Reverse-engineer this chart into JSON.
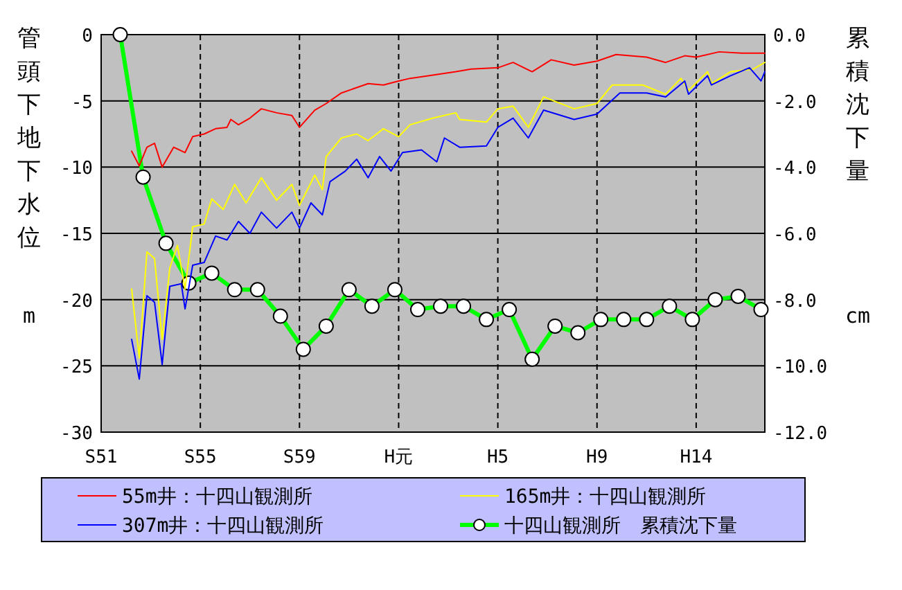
{
  "chart_data": {
    "type": "line",
    "ylabel": "管頭下地下水位",
    "y2label": "累積沈下量",
    "annotations": [
      "m",
      "cm"
    ],
    "categories": [
      "S51",
      null,
      null,
      null,
      null,
      null,
      null,
      null,
      null,
      null,
      null,
      null,
      null,
      null,
      null,
      null,
      null,
      null,
      null,
      null,
      null,
      null,
      null,
      null,
      null,
      null,
      "S55",
      null,
      null,
      null,
      null,
      null,
      null,
      null,
      null,
      null,
      null,
      null,
      null,
      null,
      null,
      null,
      null,
      null,
      null,
      null,
      null,
      null,
      null,
      null,
      null,
      null,
      "S59",
      null,
      null,
      null,
      null,
      null,
      null,
      null,
      null,
      null,
      null,
      null,
      null,
      null,
      null,
      null,
      null,
      null,
      null,
      null,
      null,
      null,
      null,
      null,
      null,
      null,
      "H元",
      null,
      null,
      null,
      null,
      null,
      null,
      null,
      null,
      null,
      null,
      null,
      null,
      null,
      null,
      null,
      null,
      null,
      null,
      null,
      null,
      null,
      null,
      null,
      null,
      null,
      "H5",
      null,
      null,
      null,
      null,
      null,
      null,
      null,
      null,
      null,
      null,
      null,
      null,
      null,
      null,
      null,
      null,
      null,
      null,
      null,
      null,
      null,
      null,
      null,
      null,
      null,
      "H9",
      null,
      null,
      null,
      null,
      null,
      null,
      null,
      null,
      null,
      null,
      null,
      null,
      null,
      null,
      null,
      null,
      null,
      null,
      null,
      null,
      null,
      null,
      null,
      null,
      null,
      "H14",
      null,
      null,
      null,
      null,
      null,
      null,
      null,
      null,
      null,
      null,
      null,
      null,
      null,
      null,
      null,
      null,
      null,
      null
    ],
    "ylim": [
      -30,
      0
    ],
    "yticks": [
      -30,
      -25,
      -20,
      -15,
      -10,
      -5,
      0
    ],
    "y2lim": [
      -12,
      0
    ],
    "y2ticks": [
      {
        "value": -12,
        "label": "-12.0"
      },
      {
        "value": -10,
        "label": "-10.0"
      },
      {
        "value": -8,
        "label": "-8.0"
      },
      {
        "value": -6,
        "label": "-6.0"
      },
      {
        "value": -4,
        "label": "-4.0"
      },
      {
        "value": -2,
        "label": "-2.0"
      },
      {
        "value": 0,
        "label": "0.0"
      }
    ],
    "grid": true,
    "legend": "bottom",
    "series": [
      {
        "name": "55m井：十四山観測所",
        "color": "#ff0000",
        "marker": "none",
        "values": [
          null,
          null,
          null,
          null,
          null,
          null,
          null,
          null,
          -8.8,
          null,
          -9.9,
          null,
          -8.5,
          null,
          -8.2,
          null,
          -10.0,
          null,
          null,
          -8.5,
          null,
          null,
          -8.9,
          null,
          -7.7,
          null,
          null,
          -7.5,
          null,
          null,
          -7.1,
          null,
          null,
          -7.0,
          -6.4,
          null,
          -6.8,
          null,
          null,
          -6.3,
          null,
          null,
          -5.6,
          null,
          null,
          null,
          -5.9,
          null,
          null,
          null,
          -6.1,
          null,
          -7.0,
          null,
          null,
          null,
          -5.7,
          null,
          null,
          -5.2,
          null,
          null,
          null,
          -4.4,
          null,
          null,
          null,
          -4.0,
          null,
          null,
          -3.7,
          null,
          null,
          null,
          -3.8,
          null,
          null,
          null,
          -3.5,
          null,
          null,
          -3.3,
          null,
          null,
          null,
          null,
          -3.1,
          null,
          null,
          null,
          null,
          null,
          null,
          -2.8,
          null,
          null,
          null,
          -2.6,
          null,
          null,
          null,
          null,
          null,
          null,
          -2.5,
          null,
          null,
          null,
          -2.1,
          null,
          null,
          null,
          null,
          -2.8,
          null,
          null,
          null,
          null,
          -1.9,
          null,
          null,
          null,
          null,
          null,
          -2.3,
          null,
          null,
          null,
          null,
          null,
          -2.0,
          null,
          null,
          null,
          null,
          -1.5,
          null,
          null,
          null,
          null,
          null,
          null,
          null,
          -1.7,
          null,
          null,
          null,
          null,
          -2.1,
          null,
          null,
          null,
          null,
          -1.6,
          null,
          null,
          -1.7,
          null,
          null,
          null,
          null,
          null,
          -1.3,
          null,
          null,
          null,
          null,
          null,
          -1.4,
          null,
          null,
          null,
          null,
          null,
          -1.4
        ]
      },
      {
        "name": "165m井：十四山観測所",
        "color": "#ffff00",
        "marker": "none",
        "values": [
          null,
          null,
          null,
          null,
          null,
          null,
          null,
          null,
          -19.2,
          null,
          -24.4,
          null,
          -16.4,
          null,
          -16.9,
          null,
          -23.0,
          null,
          -17.6,
          null,
          -15.9,
          null,
          -19.2,
          null,
          -14.5,
          null,
          null,
          -14.3,
          null,
          -12.4,
          null,
          null,
          -13.2,
          null,
          null,
          -11.3,
          null,
          null,
          -12.7,
          null,
          null,
          null,
          -10.8,
          null,
          null,
          null,
          -12.5,
          null,
          null,
          null,
          -11.3,
          null,
          -12.9,
          null,
          null,
          null,
          -10.6,
          null,
          -11.7,
          -9.2,
          null,
          null,
          null,
          -7.8,
          null,
          null,
          null,
          -7.5,
          null,
          null,
          -8.0,
          null,
          null,
          null,
          -7.1,
          null,
          null,
          null,
          -7.7,
          null,
          null,
          -6.8,
          null,
          null,
          null,
          null,
          null,
          -6.3,
          null,
          null,
          null,
          null,
          null,
          -5.9,
          -6.4,
          null,
          null,
          null,
          null,
          null,
          null,
          -6.6,
          null,
          null,
          -5.6,
          null,
          null,
          null,
          -5.4,
          null,
          null,
          null,
          -7.0,
          null,
          null,
          null,
          -4.7,
          null,
          null,
          null,
          null,
          null,
          null,
          null,
          -5.6,
          null,
          null,
          null,
          null,
          null,
          -5.2,
          null,
          null,
          null,
          -3.8,
          null,
          null,
          null,
          null,
          null,
          null,
          null,
          -3.8,
          null,
          null,
          null,
          null,
          null,
          -4.5,
          null,
          null,
          null,
          -3.3,
          null,
          -4.2,
          null,
          null,
          null,
          null,
          -2.8,
          -3.7,
          null,
          null,
          null,
          null,
          -2.8,
          null,
          null,
          null,
          null,
          null,
          -2.6,
          null,
          null,
          -2.1
        ]
      },
      {
        "name": "307m井：十四山観測所",
        "color": "#0000ff",
        "marker": "none",
        "values": [
          null,
          null,
          null,
          null,
          null,
          null,
          null,
          null,
          -23.0,
          null,
          -26.0,
          null,
          -19.7,
          null,
          -20.2,
          null,
          -24.9,
          null,
          -19.0,
          null,
          null,
          -18.8,
          -20.7,
          null,
          -17.4,
          null,
          null,
          -17.2,
          null,
          null,
          -15.2,
          null,
          null,
          -15.5,
          null,
          null,
          -14.1,
          null,
          null,
          -15.0,
          null,
          null,
          -13.4,
          null,
          null,
          null,
          -14.6,
          null,
          null,
          null,
          -13.4,
          null,
          -14.6,
          null,
          null,
          -12.7,
          null,
          null,
          -13.6,
          null,
          -11.1,
          null,
          null,
          null,
          -10.3,
          null,
          null,
          -9.4,
          null,
          null,
          -10.8,
          null,
          null,
          -9.2,
          null,
          null,
          -10.3,
          null,
          null,
          -8.9,
          null,
          null,
          null,
          null,
          -8.7,
          null,
          null,
          null,
          -9.6,
          null,
          -7.8,
          null,
          null,
          null,
          -8.5,
          null,
          null,
          null,
          null,
          null,
          null,
          -8.4,
          null,
          null,
          -7.0,
          null,
          null,
          null,
          -6.3,
          null,
          null,
          null,
          -7.8,
          null,
          null,
          null,
          -5.7,
          null,
          null,
          null,
          null,
          null,
          null,
          null,
          -6.4,
          null,
          null,
          null,
          null,
          null,
          -6.0,
          null,
          null,
          null,
          null,
          null,
          -4.4,
          null,
          null,
          null,
          null,
          null,
          null,
          -4.4,
          null,
          null,
          null,
          null,
          -4.7,
          null,
          null,
          null,
          null,
          -3.5,
          -4.5,
          null,
          null,
          null,
          null,
          -3.1,
          -3.8,
          null,
          null,
          null,
          null,
          -3.1,
          null,
          null,
          null,
          null,
          -2.5,
          null,
          null,
          -3.5,
          -2.8
        ]
      },
      {
        "name": "十四山観測所　累積沈下量",
        "color": "#00ff00",
        "marker": "circle",
        "axis": "y2",
        "values": [
          null,
          null,
          null,
          null,
          null,
          0,
          null,
          null,
          null,
          null,
          null,
          -4.3,
          null,
          null,
          null,
          null,
          null,
          -6.3,
          null,
          null,
          null,
          null,
          null,
          -7.5,
          null,
          null,
          null,
          null,
          null,
          -7.2,
          null,
          null,
          null,
          null,
          null,
          -7.7,
          null,
          null,
          null,
          null,
          null,
          -7.7,
          null,
          null,
          null,
          null,
          null,
          -8.5,
          null,
          null,
          null,
          null,
          null,
          -9.5,
          null,
          null,
          null,
          null,
          null,
          -8.8,
          null,
          null,
          null,
          null,
          null,
          -7.7,
          null,
          null,
          null,
          null,
          null,
          -8.2,
          null,
          null,
          null,
          null,
          null,
          -7.7,
          null,
          null,
          null,
          null,
          null,
          -8.3,
          null,
          null,
          null,
          null,
          null,
          -8.2,
          null,
          null,
          null,
          null,
          null,
          -8.2,
          null,
          null,
          null,
          null,
          null,
          -8.6,
          null,
          null,
          null,
          null,
          null,
          -8.3,
          null,
          null,
          null,
          null,
          null,
          -9.8,
          null,
          null,
          null,
          null,
          null,
          -8.8,
          null,
          null,
          null,
          null,
          null,
          -9.0,
          null,
          null,
          null,
          null,
          null,
          -8.6,
          null,
          null,
          null,
          null,
          null,
          -8.6,
          null,
          null,
          null,
          null,
          null,
          -8.6,
          null,
          null,
          null,
          null,
          null,
          -8.2,
          null,
          null,
          null,
          null,
          null,
          -8.6,
          null,
          null,
          null,
          null,
          null,
          -8.0,
          null,
          null,
          null,
          null,
          null,
          -7.9,
          null,
          null,
          null,
          null,
          null,
          -8.3,
          null
        ]
      }
    ]
  }
}
